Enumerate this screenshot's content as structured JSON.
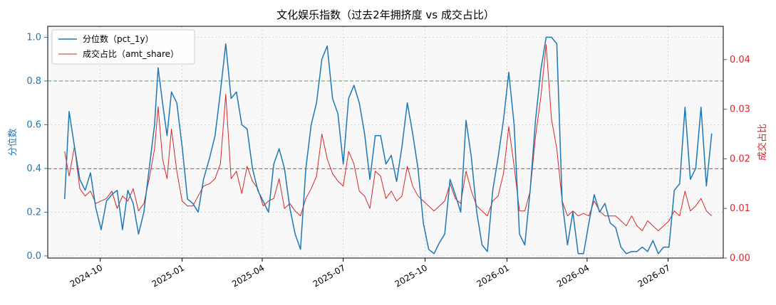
{
  "chart_data": {
    "type": "line",
    "title": "文化娱乐指数（过去2年拥挤度 vs 成交占比）",
    "xlabel": "",
    "ylabel_left": "分位数",
    "ylabel_right": "成交占比",
    "x_ticks": [
      "2024-10",
      "2025-01",
      "2025-04",
      "2025-07",
      "2025-10",
      "2026-01",
      "2026-04",
      "2026-07"
    ],
    "x_range": [
      "2024-08-03",
      "2026-09-01"
    ],
    "y_left_ticks": [
      "0.0",
      "0.2",
      "0.4",
      "0.6",
      "0.8",
      "1.0"
    ],
    "y_left_range": [
      -0.01,
      1.05
    ],
    "y_right_ticks": [
      "0.00",
      "0.01",
      "0.02",
      "0.03",
      "0.04"
    ],
    "y_right_range": [
      0,
      0.0467
    ],
    "reference_lines": [
      {
        "axis": "left",
        "value": 0.8,
        "color": "#2ca02c",
        "style": "dashed"
      },
      {
        "axis": "right",
        "value": 0.018,
        "color": "#d62728",
        "style": "dashed"
      }
    ],
    "legend_position": "top-left",
    "grid": true,
    "colors": {
      "pct": "#1f77b4",
      "amt": "#d62728",
      "plot_bg": "#f8f8f8"
    },
    "series": [
      {
        "name": "分位数（pct_1y）",
        "axis": "left",
        "x": [
          "2024-08-22",
          "2024-08-27",
          "2024-09-02",
          "2024-09-08",
          "2024-09-14",
          "2024-09-20",
          "2024-09-26",
          "2024-10-02",
          "2024-10-08",
          "2024-10-14",
          "2024-10-20",
          "2024-10-26",
          "2024-11-01",
          "2024-11-07",
          "2024-11-13",
          "2024-11-19",
          "2024-11-25",
          "2024-12-01",
          "2024-12-05",
          "2024-12-10",
          "2024-12-15",
          "2024-12-20",
          "2024-12-26",
          "2025-01-01",
          "2025-01-07",
          "2025-01-13",
          "2025-01-19",
          "2025-01-25",
          "2025-02-01",
          "2025-02-07",
          "2025-02-13",
          "2025-02-19",
          "2025-02-25",
          "2025-03-03",
          "2025-03-09",
          "2025-03-15",
          "2025-03-21",
          "2025-03-27",
          "2025-04-02",
          "2025-04-08",
          "2025-04-14",
          "2025-04-20",
          "2025-04-26",
          "2025-05-02",
          "2025-05-08",
          "2025-05-14",
          "2025-05-20",
          "2025-05-26",
          "2025-06-01",
          "2025-06-07",
          "2025-06-13",
          "2025-06-19",
          "2025-06-25",
          "2025-07-01",
          "2025-07-07",
          "2025-07-13",
          "2025-07-19",
          "2025-07-25",
          "2025-07-31",
          "2025-08-06",
          "2025-08-12",
          "2025-08-18",
          "2025-08-24",
          "2025-08-30",
          "2025-09-05",
          "2025-09-11",
          "2025-09-17",
          "2025-09-23",
          "2025-09-29",
          "2025-10-05",
          "2025-10-11",
          "2025-10-17",
          "2025-10-23",
          "2025-10-29",
          "2025-11-04",
          "2025-11-10",
          "2025-11-16",
          "2025-11-22",
          "2025-11-28",
          "2025-12-04",
          "2025-12-10",
          "2025-12-16",
          "2025-12-22",
          "2025-12-28",
          "2026-01-03",
          "2026-01-09",
          "2026-01-15",
          "2026-01-21",
          "2026-01-27",
          "2026-02-02",
          "2026-02-08",
          "2026-02-14",
          "2026-02-20",
          "2026-02-26",
          "2026-03-04",
          "2026-03-10",
          "2026-03-16",
          "2026-03-22",
          "2026-03-28",
          "2026-04-03",
          "2026-04-09",
          "2026-04-15",
          "2026-04-21",
          "2026-04-27",
          "2026-05-03",
          "2026-05-09",
          "2026-05-15",
          "2026-05-21",
          "2026-05-27",
          "2026-06-02",
          "2026-06-08",
          "2026-06-14",
          "2026-06-20",
          "2026-06-26",
          "2026-07-02",
          "2026-07-08",
          "2026-07-14",
          "2026-07-20",
          "2026-07-26",
          "2026-08-01",
          "2026-08-07",
          "2026-08-13",
          "2026-08-19"
        ],
        "values": [
          0.26,
          0.66,
          0.5,
          0.35,
          0.3,
          0.38,
          0.22,
          0.12,
          0.25,
          0.28,
          0.3,
          0.12,
          0.3,
          0.24,
          0.1,
          0.2,
          0.4,
          0.6,
          0.86,
          0.7,
          0.55,
          0.75,
          0.7,
          0.5,
          0.26,
          0.24,
          0.2,
          0.35,
          0.45,
          0.55,
          0.75,
          0.97,
          0.72,
          0.75,
          0.6,
          0.58,
          0.4,
          0.3,
          0.25,
          0.2,
          0.42,
          0.49,
          0.4,
          0.22,
          0.1,
          0.03,
          0.4,
          0.6,
          0.7,
          0.9,
          0.96,
          0.72,
          0.65,
          0.42,
          0.72,
          0.78,
          0.7,
          0.56,
          0.35,
          0.55,
          0.55,
          0.42,
          0.46,
          0.34,
          0.5,
          0.7,
          0.56,
          0.4,
          0.15,
          0.03,
          0.01,
          0.06,
          0.1,
          0.35,
          0.28,
          0.2,
          0.62,
          0.45,
          0.2,
          0.05,
          0.02,
          0.3,
          0.45,
          0.62,
          0.84,
          0.6,
          0.1,
          0.05,
          0.3,
          0.62,
          0.85,
          1.0,
          1.0,
          0.97,
          0.25,
          0.05,
          0.2,
          0.01,
          0.01,
          0.15,
          0.28,
          0.2,
          0.24,
          0.15,
          0.13,
          0.04,
          0.01,
          0.02,
          0.02,
          0.04,
          0.02,
          0.07,
          0.01,
          0.04,
          0.04,
          0.3,
          0.33,
          0.68,
          0.35,
          0.4,
          0.68,
          0.32,
          0.56
        ]
      },
      {
        "name": "成交占比（amt_share）",
        "axis": "right",
        "x": [
          "2024-08-22",
          "2024-08-27",
          "2024-09-02",
          "2024-09-08",
          "2024-09-14",
          "2024-09-20",
          "2024-09-26",
          "2024-10-02",
          "2024-10-08",
          "2024-10-14",
          "2024-10-20",
          "2024-10-26",
          "2024-11-01",
          "2024-11-07",
          "2024-11-13",
          "2024-11-19",
          "2024-11-25",
          "2024-12-01",
          "2024-12-05",
          "2024-12-10",
          "2024-12-15",
          "2024-12-20",
          "2024-12-26",
          "2025-01-01",
          "2025-01-07",
          "2025-01-13",
          "2025-01-19",
          "2025-01-25",
          "2025-02-01",
          "2025-02-07",
          "2025-02-13",
          "2025-02-19",
          "2025-02-25",
          "2025-03-03",
          "2025-03-09",
          "2025-03-15",
          "2025-03-21",
          "2025-03-27",
          "2025-04-02",
          "2025-04-08",
          "2025-04-14",
          "2025-04-20",
          "2025-04-26",
          "2025-05-02",
          "2025-05-08",
          "2025-05-14",
          "2025-05-20",
          "2025-05-26",
          "2025-06-01",
          "2025-06-07",
          "2025-06-13",
          "2025-06-19",
          "2025-06-25",
          "2025-07-01",
          "2025-07-07",
          "2025-07-13",
          "2025-07-19",
          "2025-07-25",
          "2025-07-31",
          "2025-08-06",
          "2025-08-12",
          "2025-08-18",
          "2025-08-24",
          "2025-08-30",
          "2025-09-05",
          "2025-09-11",
          "2025-09-17",
          "2025-09-23",
          "2025-09-29",
          "2025-10-05",
          "2025-10-11",
          "2025-10-17",
          "2025-10-23",
          "2025-10-29",
          "2025-11-04",
          "2025-11-10",
          "2025-11-16",
          "2025-11-22",
          "2025-11-28",
          "2025-12-04",
          "2025-12-10",
          "2025-12-16",
          "2025-12-22",
          "2025-12-28",
          "2026-01-03",
          "2026-01-09",
          "2026-01-15",
          "2026-01-21",
          "2026-01-27",
          "2026-02-02",
          "2026-02-08",
          "2026-02-14",
          "2026-02-20",
          "2026-02-26",
          "2026-03-04",
          "2026-03-10",
          "2026-03-16",
          "2026-03-22",
          "2026-03-28",
          "2026-04-03",
          "2026-04-09",
          "2026-04-15",
          "2026-04-21",
          "2026-04-27",
          "2026-05-03",
          "2026-05-09",
          "2026-05-15",
          "2026-05-21",
          "2026-05-27",
          "2026-06-02",
          "2026-06-08",
          "2026-06-14",
          "2026-06-20",
          "2026-06-26",
          "2026-07-02",
          "2026-07-08",
          "2026-07-14",
          "2026-07-20",
          "2026-07-26",
          "2026-08-01",
          "2026-08-07",
          "2026-08-13",
          "2026-08-19"
        ],
        "values": [
          0.0215,
          0.0165,
          0.0225,
          0.014,
          0.0125,
          0.0135,
          0.011,
          0.0115,
          0.012,
          0.0135,
          0.01,
          0.0125,
          0.0115,
          0.014,
          0.0095,
          0.011,
          0.016,
          0.022,
          0.0305,
          0.02,
          0.016,
          0.026,
          0.0175,
          0.0115,
          0.0105,
          0.0105,
          0.0125,
          0.0145,
          0.015,
          0.016,
          0.019,
          0.033,
          0.016,
          0.0175,
          0.013,
          0.0185,
          0.0155,
          0.014,
          0.0105,
          0.0115,
          0.012,
          0.016,
          0.01,
          0.011,
          0.0095,
          0.0085,
          0.012,
          0.014,
          0.0165,
          0.025,
          0.02,
          0.017,
          0.0155,
          0.0145,
          0.0215,
          0.019,
          0.0135,
          0.0125,
          0.01,
          0.0175,
          0.0165,
          0.012,
          0.0135,
          0.0115,
          0.0125,
          0.0185,
          0.0145,
          0.0125,
          0.0115,
          0.0105,
          0.0095,
          0.0105,
          0.0115,
          0.015,
          0.012,
          0.011,
          0.0175,
          0.0135,
          0.0105,
          0.0095,
          0.0085,
          0.0115,
          0.0125,
          0.017,
          0.0265,
          0.0185,
          0.0095,
          0.0095,
          0.0135,
          0.0245,
          0.0325,
          0.043,
          0.028,
          0.022,
          0.0115,
          0.0085,
          0.0095,
          0.0085,
          0.009,
          0.0085,
          0.0115,
          0.0095,
          0.0085,
          0.0085,
          0.0085,
          0.0075,
          0.0065,
          0.0085,
          0.0065,
          0.0055,
          0.0075,
          0.0065,
          0.0055,
          0.0065,
          0.0075,
          0.0095,
          0.0085,
          0.0135,
          0.0095,
          0.0105,
          0.012,
          0.0095,
          0.0085
        ]
      }
    ]
  }
}
